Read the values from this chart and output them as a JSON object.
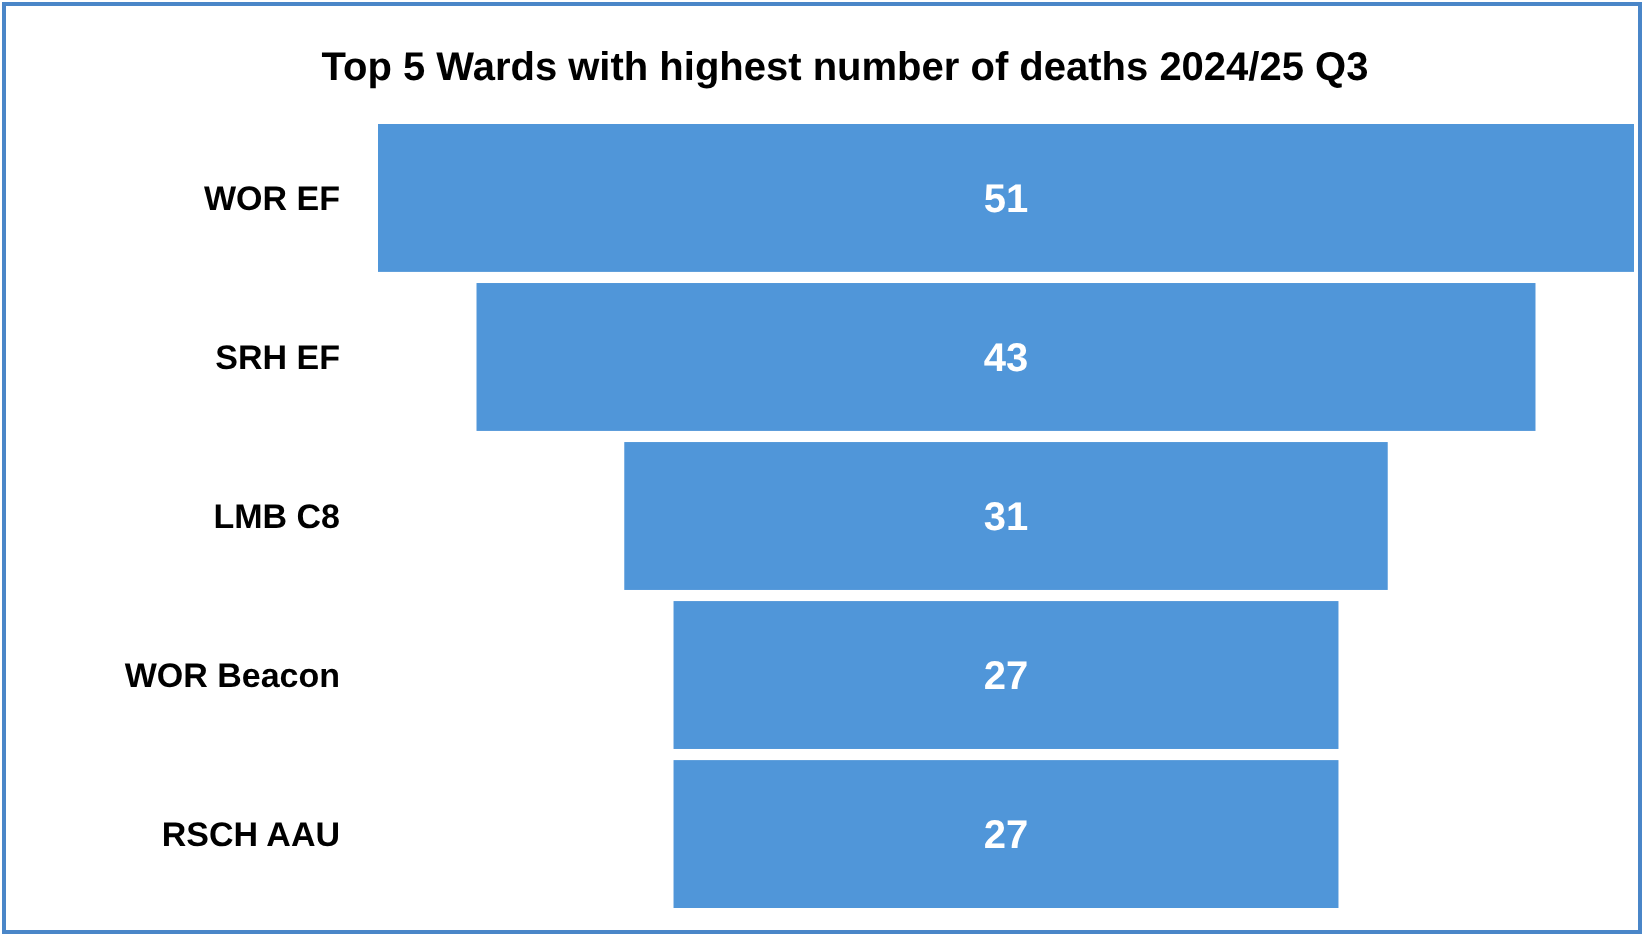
{
  "chart_data": {
    "type": "other",
    "title": "Top 5 Wards with highest number of deaths 2024/25 Q3",
    "categories": [
      "WOR EF",
      "SRH EF",
      "LMB C8",
      "WOR Beacon",
      "RSCH AAU"
    ],
    "values": [
      51,
      43,
      31,
      27,
      27
    ],
    "color": "#5096d9",
    "data_labels": true
  }
}
